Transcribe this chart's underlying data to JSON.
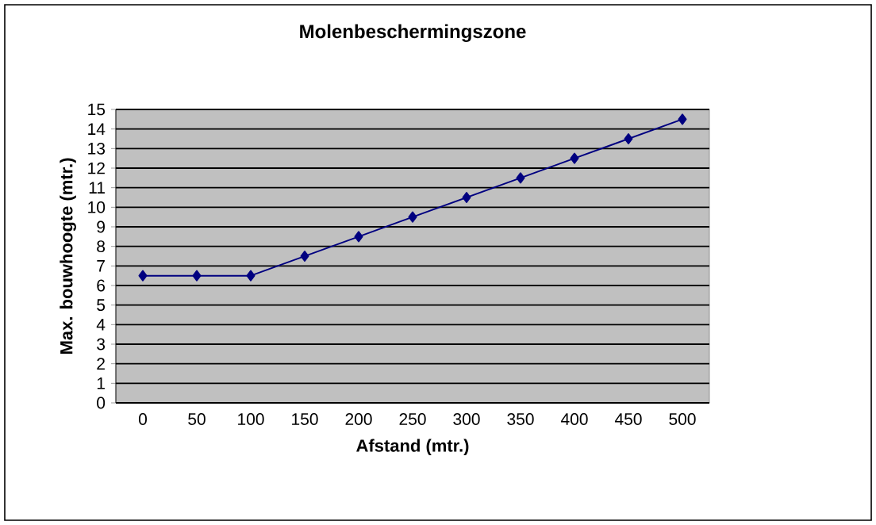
{
  "chart_data": {
    "type": "line",
    "title": "Molenbeschermingszone",
    "xlabel": "Afstand (mtr.)",
    "ylabel": "Max. bouwhoogte (mtr.)",
    "categories": [
      "0",
      "50",
      "100",
      "150",
      "200",
      "250",
      "300",
      "350",
      "400",
      "450",
      "500"
    ],
    "series": [
      {
        "color": "#000080",
        "values": [
          6.5,
          6.5,
          6.5,
          7.5,
          8.5,
          9.5,
          10.5,
          11.5,
          12.5,
          13.5,
          14.5
        ]
      }
    ],
    "ylim": [
      0,
      15
    ],
    "yticks": [
      0,
      1,
      2,
      3,
      4,
      5,
      6,
      7,
      8,
      9,
      10,
      11,
      12,
      13,
      14,
      15
    ],
    "grid": "y",
    "legend": false,
    "marker": "diamond",
    "line_style": "solid"
  }
}
